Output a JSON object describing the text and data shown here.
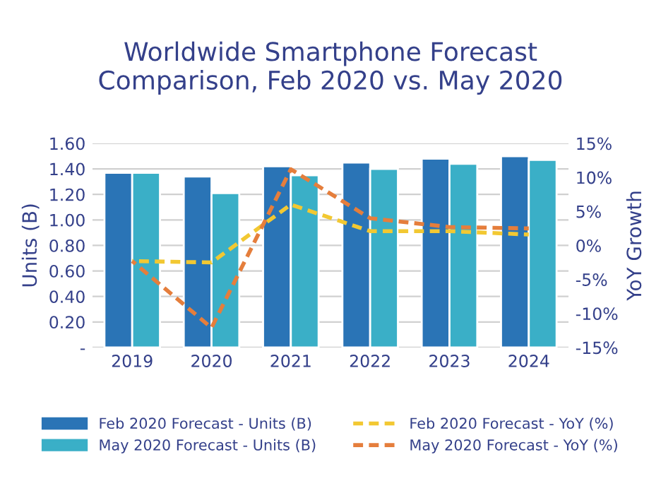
{
  "chart_data": {
    "type": "bar",
    "title": "Worldwide Smartphone Forecast\nComparison, Feb 2020 vs. May 2020",
    "ylabel": "Units (B)",
    "y2label": "YoY Growth",
    "categories": [
      "2019",
      "2020",
      "2021",
      "2022",
      "2023",
      "2024"
    ],
    "series": [
      {
        "name": "Feb 2020 Forecast - Units (B)",
        "color": "#2a74b6",
        "values": [
          1.37,
          1.34,
          1.42,
          1.45,
          1.48,
          1.5
        ]
      },
      {
        "name": "May 2020 Forecast - Units (B)",
        "color": "#3aafc7",
        "values": [
          1.37,
          1.21,
          1.35,
          1.4,
          1.44,
          1.47
        ]
      },
      {
        "name": "Feb 2020 Forecast - YoY (%)",
        "type": "line",
        "axis": "y2",
        "color": "#f2c832",
        "line_style": "dashed",
        "values": [
          -2.3,
          -2.5,
          6.0,
          2.1,
          2.1,
          1.6
        ]
      },
      {
        "name": "May 2020 Forecast - YoY (%)",
        "type": "line",
        "axis": "y2",
        "color": "#e57e3c",
        "line_style": "dashed",
        "values": [
          -2.3,
          -12.1,
          11.2,
          4.0,
          2.7,
          2.5
        ]
      }
    ],
    "ylim": [
      0,
      1.6
    ],
    "yticks": [
      {
        "value": 0,
        "label": "-"
      },
      {
        "value": 0.2,
        "label": "0.20"
      },
      {
        "value": 0.4,
        "label": "0.40"
      },
      {
        "value": 0.6,
        "label": "0.60"
      },
      {
        "value": 0.8,
        "label": "0.80"
      },
      {
        "value": 1.0,
        "label": "1.00"
      },
      {
        "value": 1.2,
        "label": "1.20"
      },
      {
        "value": 1.4,
        "label": "1.40"
      },
      {
        "value": 1.6,
        "label": "1.60"
      }
    ],
    "y2lim": [
      -15,
      15
    ],
    "y2ticks": [
      {
        "value": -15,
        "label": "-15%"
      },
      {
        "value": -10,
        "label": "-10%"
      },
      {
        "value": -5,
        "label": "-5%"
      },
      {
        "value": 0,
        "label": "0%"
      },
      {
        "value": 5,
        "label": "5%"
      },
      {
        "value": 10,
        "label": "10%"
      },
      {
        "value": 15,
        "label": "15%"
      }
    ],
    "grid": "y",
    "legend": "bottom"
  }
}
